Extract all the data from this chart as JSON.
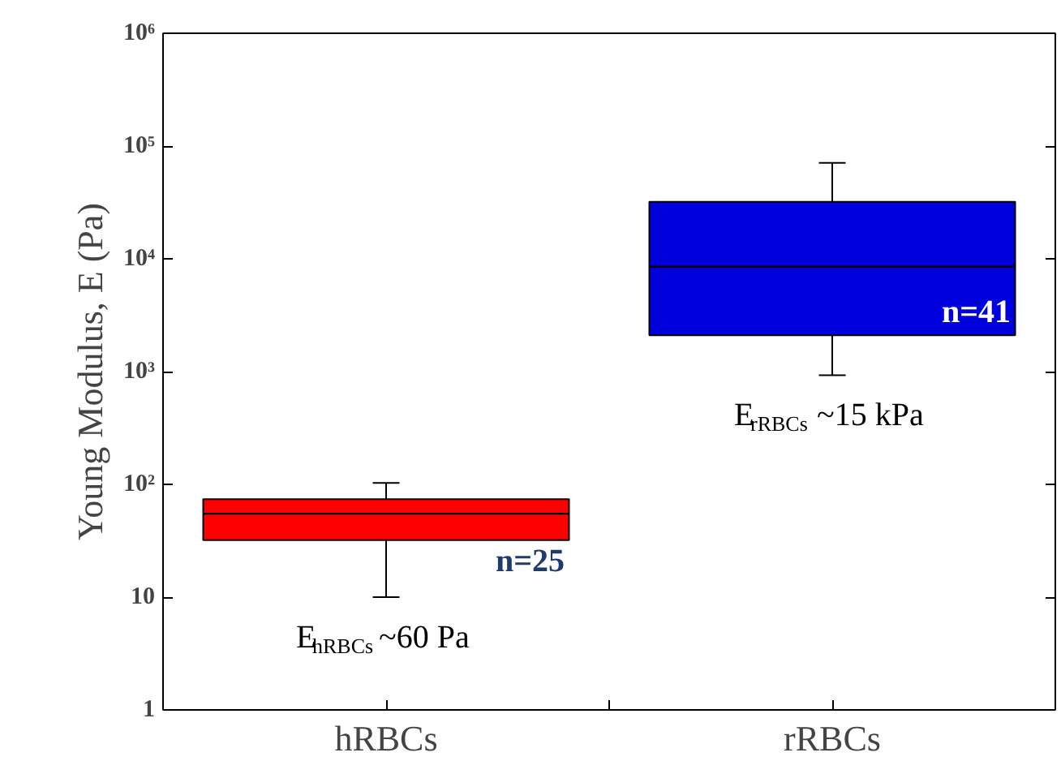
{
  "chart_data": {
    "type": "box",
    "ylabel": "Young Modulus, E (Pa)",
    "categories": [
      "hRBCs",
      "rRBCs"
    ],
    "log": true,
    "grid": false,
    "ylim": [
      1,
      1000000
    ],
    "yticks": [
      1,
      10,
      {
        "value": 100,
        "label": "10²"
      },
      {
        "value": 1000,
        "label": "10³"
      },
      {
        "value": 10000,
        "label": "10⁴"
      },
      {
        "value": 100000,
        "label": "10⁵"
      },
      {
        "value": 1000000,
        "label": "10⁶"
      }
    ],
    "colors": [
      "#ff0000",
      "#0000dd"
    ],
    "boxes": [
      {
        "low": 10,
        "q1": 32,
        "median": 55,
        "q3": 74,
        "high": 103
      },
      {
        "low": 930,
        "q1": 2100,
        "median": 8500,
        "q3": 32000,
        "high": 71000
      }
    ],
    "annotations": [
      "n=25",
      "E$_{hRBCs}$~60 Pa",
      "n=41",
      "E$_{rRBCs}$~15 kPa"
    ]
  }
}
